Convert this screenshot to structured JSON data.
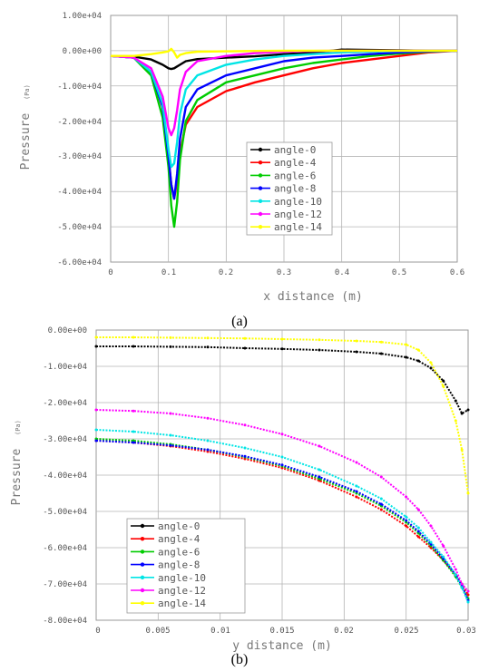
{
  "charts": [
    {
      "caption": "(a)",
      "xlabel": "x distance (m)",
      "ylabel": "Pressure",
      "ylabel_unit": "(Pa)",
      "xticks": [
        "0",
        "0.1",
        "0.2",
        "0.3",
        "0.4",
        "0.5",
        "0.6"
      ],
      "yticks": [
        "1.00e+04",
        "0.00e+00",
        "-1.00e+04",
        "-2.00e+04",
        "-3.00e+04",
        "-4.00e+04",
        "-5.00e+04",
        "-6.00e+04"
      ],
      "legend": [
        "angle-0",
        "angle-4",
        "angle-6",
        "angle-8",
        "angle-10",
        "angle-12",
        "angle-14"
      ]
    },
    {
      "caption": "(b)",
      "xlabel": "y distance (m)",
      "ylabel": "Pressure",
      "ylabel_unit": "(Pa)",
      "xticks": [
        "0",
        "0.005",
        "0.01",
        "0.015",
        "0.02",
        "0.025",
        "0.03"
      ],
      "yticks": [
        "0.00e+00",
        "-1.00e+04",
        "-2.00e+04",
        "-3.00e+04",
        "-4.00e+04",
        "-5.00e+04",
        "-6.00e+04",
        "-7.00e+04",
        "-8.00e+04"
      ],
      "legend": [
        "angle-0",
        "angle-4",
        "angle-6",
        "angle-8",
        "angle-10",
        "angle-12",
        "angle-14"
      ]
    }
  ],
  "chart_data": [
    {
      "type": "line",
      "xlabel": "x distance (m)",
      "ylabel": "Pressure (Pa)",
      "xlim": [
        0,
        0.6
      ],
      "ylim": [
        -60000,
        10000
      ],
      "grid": true,
      "legend_position": "center-right",
      "x": [
        0,
        0.04,
        0.07,
        0.09,
        0.1,
        0.105,
        0.11,
        0.115,
        0.12,
        0.13,
        0.15,
        0.2,
        0.25,
        0.3,
        0.35,
        0.4,
        0.45,
        0.5,
        0.55,
        0.6
      ],
      "series": [
        {
          "name": "angle-0",
          "color": "#000000",
          "values": [
            -1500,
            -1700,
            -2500,
            -4000,
            -5000,
            -5200,
            -5000,
            -4500,
            -4000,
            -3000,
            -2400,
            -2000,
            -1600,
            -1000,
            -600,
            300,
            200,
            100,
            0,
            0
          ]
        },
        {
          "name": "angle-4",
          "color": "#ff0000",
          "values": [
            -1500,
            -2000,
            -6000,
            -16000,
            -30000,
            -38000,
            -42000,
            -37000,
            -29000,
            -21000,
            -16000,
            -11500,
            -9000,
            -7000,
            -5000,
            -3500,
            -2500,
            -1500,
            -500,
            0
          ]
        },
        {
          "name": "angle-6",
          "color": "#00cc00",
          "values": [
            -1500,
            -2000,
            -7000,
            -19000,
            -33000,
            -44000,
            -50000,
            -43000,
            -31000,
            -20000,
            -14000,
            -9000,
            -7000,
            -5000,
            -3500,
            -2500,
            -1500,
            -800,
            -300,
            0
          ]
        },
        {
          "name": "angle-8",
          "color": "#0000ff",
          "values": [
            -1500,
            -2000,
            -6000,
            -16000,
            -30000,
            -38000,
            -42000,
            -35000,
            -25000,
            -16000,
            -11000,
            -7000,
            -5000,
            -3000,
            -2000,
            -1500,
            -1000,
            -500,
            -200,
            0
          ]
        },
        {
          "name": "angle-10",
          "color": "#00e5e5",
          "values": [
            -1500,
            -2000,
            -6000,
            -15000,
            -28000,
            -33000,
            -32000,
            -26000,
            -18000,
            -11000,
            -7000,
            -4000,
            -2500,
            -1500,
            -1000,
            -500,
            -300,
            -100,
            0,
            0
          ]
        },
        {
          "name": "angle-12",
          "color": "#ff00ff",
          "values": [
            -1500,
            -2000,
            -5000,
            -13000,
            -22000,
            -24000,
            -22000,
            -17000,
            -11000,
            -6000,
            -3000,
            -1500,
            -700,
            -300,
            -100,
            0,
            0,
            0,
            0,
            0
          ]
        },
        {
          "name": "angle-14",
          "color": "#ffff00",
          "values": [
            -1500,
            -1500,
            -1000,
            -500,
            -200,
            500,
            -500,
            -2000,
            -1200,
            -700,
            -300,
            -200,
            -100,
            0,
            0,
            0,
            0,
            0,
            0,
            0
          ]
        }
      ]
    },
    {
      "type": "line",
      "xlabel": "y distance (m)",
      "ylabel": "Pressure (Pa)",
      "xlim": [
        0,
        0.03
      ],
      "ylim": [
        -80000,
        0
      ],
      "grid": true,
      "legend_position": "bottom-left",
      "x": [
        0,
        0.003,
        0.006,
        0.009,
        0.012,
        0.015,
        0.018,
        0.021,
        0.023,
        0.025,
        0.026,
        0.027,
        0.028,
        0.029,
        0.0295,
        0.03
      ],
      "series": [
        {
          "name": "angle-0",
          "color": "#000000",
          "values": [
            -4500,
            -4500,
            -4600,
            -4700,
            -5000,
            -5200,
            -5500,
            -6000,
            -6500,
            -7500,
            -8500,
            -10500,
            -14000,
            -19500,
            -23000,
            -22000
          ]
        },
        {
          "name": "angle-4",
          "color": "#ff0000",
          "values": [
            -30500,
            -31000,
            -32000,
            -33500,
            -35500,
            -38000,
            -41500,
            -46000,
            -49500,
            -54000,
            -57000,
            -60000,
            -63500,
            -67500,
            -70000,
            -73000
          ]
        },
        {
          "name": "angle-6",
          "color": "#00cc00",
          "values": [
            -30000,
            -30500,
            -31500,
            -33000,
            -35000,
            -37500,
            -41000,
            -45000,
            -48500,
            -53000,
            -56000,
            -59500,
            -63500,
            -68000,
            -71000,
            -74000
          ]
        },
        {
          "name": "angle-8",
          "color": "#0000ff",
          "values": [
            -30500,
            -31000,
            -31800,
            -33000,
            -34800,
            -37200,
            -40500,
            -44500,
            -48000,
            -52500,
            -55500,
            -59000,
            -63000,
            -67500,
            -70500,
            -74500
          ]
        },
        {
          "name": "angle-10",
          "color": "#00e5e5",
          "values": [
            -27500,
            -28000,
            -29000,
            -30500,
            -32500,
            -35000,
            -38500,
            -43000,
            -46500,
            -51500,
            -54500,
            -58500,
            -62500,
            -67500,
            -71000,
            -75000
          ]
        },
        {
          "name": "angle-12",
          "color": "#ff00ff",
          "values": [
            -22000,
            -22300,
            -23000,
            -24300,
            -26200,
            -28700,
            -32000,
            -36500,
            -40500,
            -46000,
            -49500,
            -54000,
            -59500,
            -66000,
            -70000,
            -72000
          ]
        },
        {
          "name": "angle-14",
          "color": "#ffff00",
          "values": [
            -2000,
            -2000,
            -2100,
            -2200,
            -2300,
            -2500,
            -2700,
            -3000,
            -3300,
            -4000,
            -5500,
            -9000,
            -15500,
            -25000,
            -33000,
            -45000
          ]
        }
      ]
    }
  ]
}
